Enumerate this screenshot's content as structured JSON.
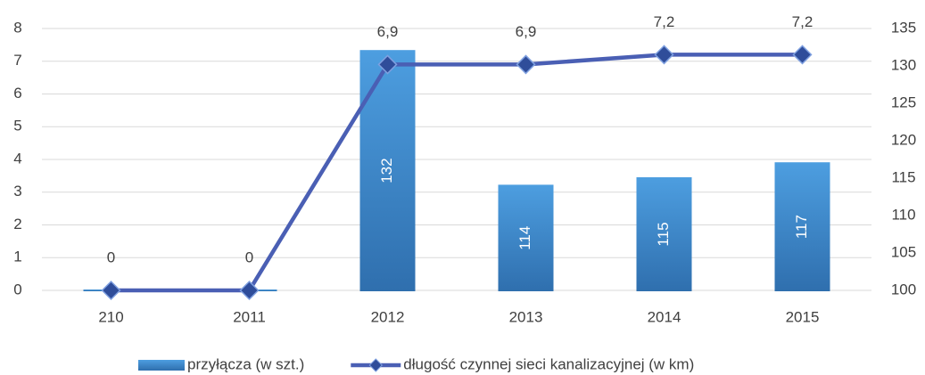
{
  "chart_data": {
    "type": "bar_line",
    "categories": [
      "210",
      "2011",
      "2012",
      "2013",
      "2014",
      "2015"
    ],
    "series": [
      {
        "name": "przyłącza (w szt.)",
        "type": "bar",
        "axis": "y2",
        "color": "#3f87cc",
        "values": [
          100,
          100,
          132,
          114,
          115,
          117
        ],
        "value_labels": [
          null,
          null,
          "132",
          "114",
          "115",
          "117"
        ]
      },
      {
        "name": "długość czynnej sieci kanalizacyjnej (w km)",
        "type": "line",
        "axis": "y",
        "color": "#4a5fb4",
        "values": [
          0,
          0,
          6.9,
          6.9,
          7.2,
          7.2
        ],
        "value_labels": [
          "0",
          "0",
          "6,9",
          "6,9",
          "7,2",
          "7,2"
        ]
      }
    ],
    "ylim": [
      0,
      8
    ],
    "yticks": [
      0,
      1,
      2,
      3,
      4,
      5,
      6,
      7,
      8
    ],
    "y2lim": [
      100,
      135
    ],
    "y2ticks": [
      100,
      105,
      110,
      115,
      120,
      125,
      130,
      135
    ],
    "grid": true,
    "legend": "bottom"
  }
}
